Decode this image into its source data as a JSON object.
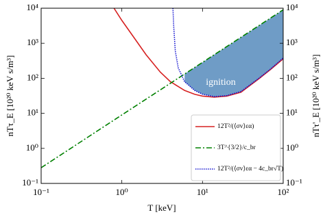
{
  "chart_data": {
    "type": "line",
    "x_label": "T [keV]",
    "y_label": "nTτ_E [10²⁰ keV s/m³]",
    "y2_label": "nTτ'_E [10²⁰ keV s/m³]",
    "annotation": "ignition",
    "fill_color": "#6f9cc6",
    "log_x": true,
    "log_y": true,
    "legend": "lower right",
    "xlim": [
      0.1,
      100
    ],
    "xticks": [
      {
        "value": 0.1,
        "label": "10⁻¹"
      },
      {
        "value": 1,
        "label": "10⁰"
      },
      {
        "value": 10,
        "label": "10¹"
      },
      {
        "value": 100,
        "label": "10²"
      }
    ],
    "ylim": [
      0.1,
      10000
    ],
    "yticks": [
      {
        "value": 0.1,
        "label": "10⁻¹"
      },
      {
        "value": 1,
        "label": "10⁰"
      },
      {
        "value": 10,
        "label": "10¹"
      },
      {
        "value": 100,
        "label": "10²"
      },
      {
        "value": 1000,
        "label": "10³"
      },
      {
        "value": 10000,
        "label": "10⁴"
      }
    ],
    "y2lim": [
      0.1,
      10000
    ],
    "y2ticks": [
      {
        "value": 0.1,
        "label": "10⁻¹"
      },
      {
        "value": 1,
        "label": "10⁰"
      },
      {
        "value": 10,
        "label": "10¹"
      },
      {
        "value": 100,
        "label": "10²"
      },
      {
        "value": 1000,
        "label": "10³"
      },
      {
        "value": 10000,
        "label": "10⁴"
      }
    ],
    "series": [
      {
        "name": "12T²/(⟨σv⟩εα)",
        "color": "#d62020",
        "style": "solid",
        "x": [
          0.8,
          1,
          1.5,
          2,
          3,
          4,
          6,
          8,
          10,
          14,
          20,
          30,
          50,
          70,
          100
        ],
        "values": [
          10000,
          4500,
          1200,
          470,
          150,
          80,
          45,
          35,
          31,
          29,
          31,
          40,
          97,
          180,
          360
        ]
      },
      {
        "name": "3T^{3/2}/c_br",
        "color": "#008000",
        "style": "dashdot",
        "x": [
          0.1,
          1,
          10,
          100
        ],
        "values": [
          0.28,
          9,
          285,
          9000
        ]
      },
      {
        "name": "12T²/(⟨σv⟩εα − 4c_br√T)",
        "color": "#1010d0",
        "style": "dotted",
        "x": [
          4.3,
          4.4,
          4.6,
          5,
          6,
          8,
          10,
          14,
          20,
          30,
          50,
          70,
          100
        ],
        "values": [
          10000,
          3000,
          600,
          200,
          80,
          45,
          35,
          30,
          32,
          42,
          100,
          185,
          380
        ]
      }
    ]
  }
}
